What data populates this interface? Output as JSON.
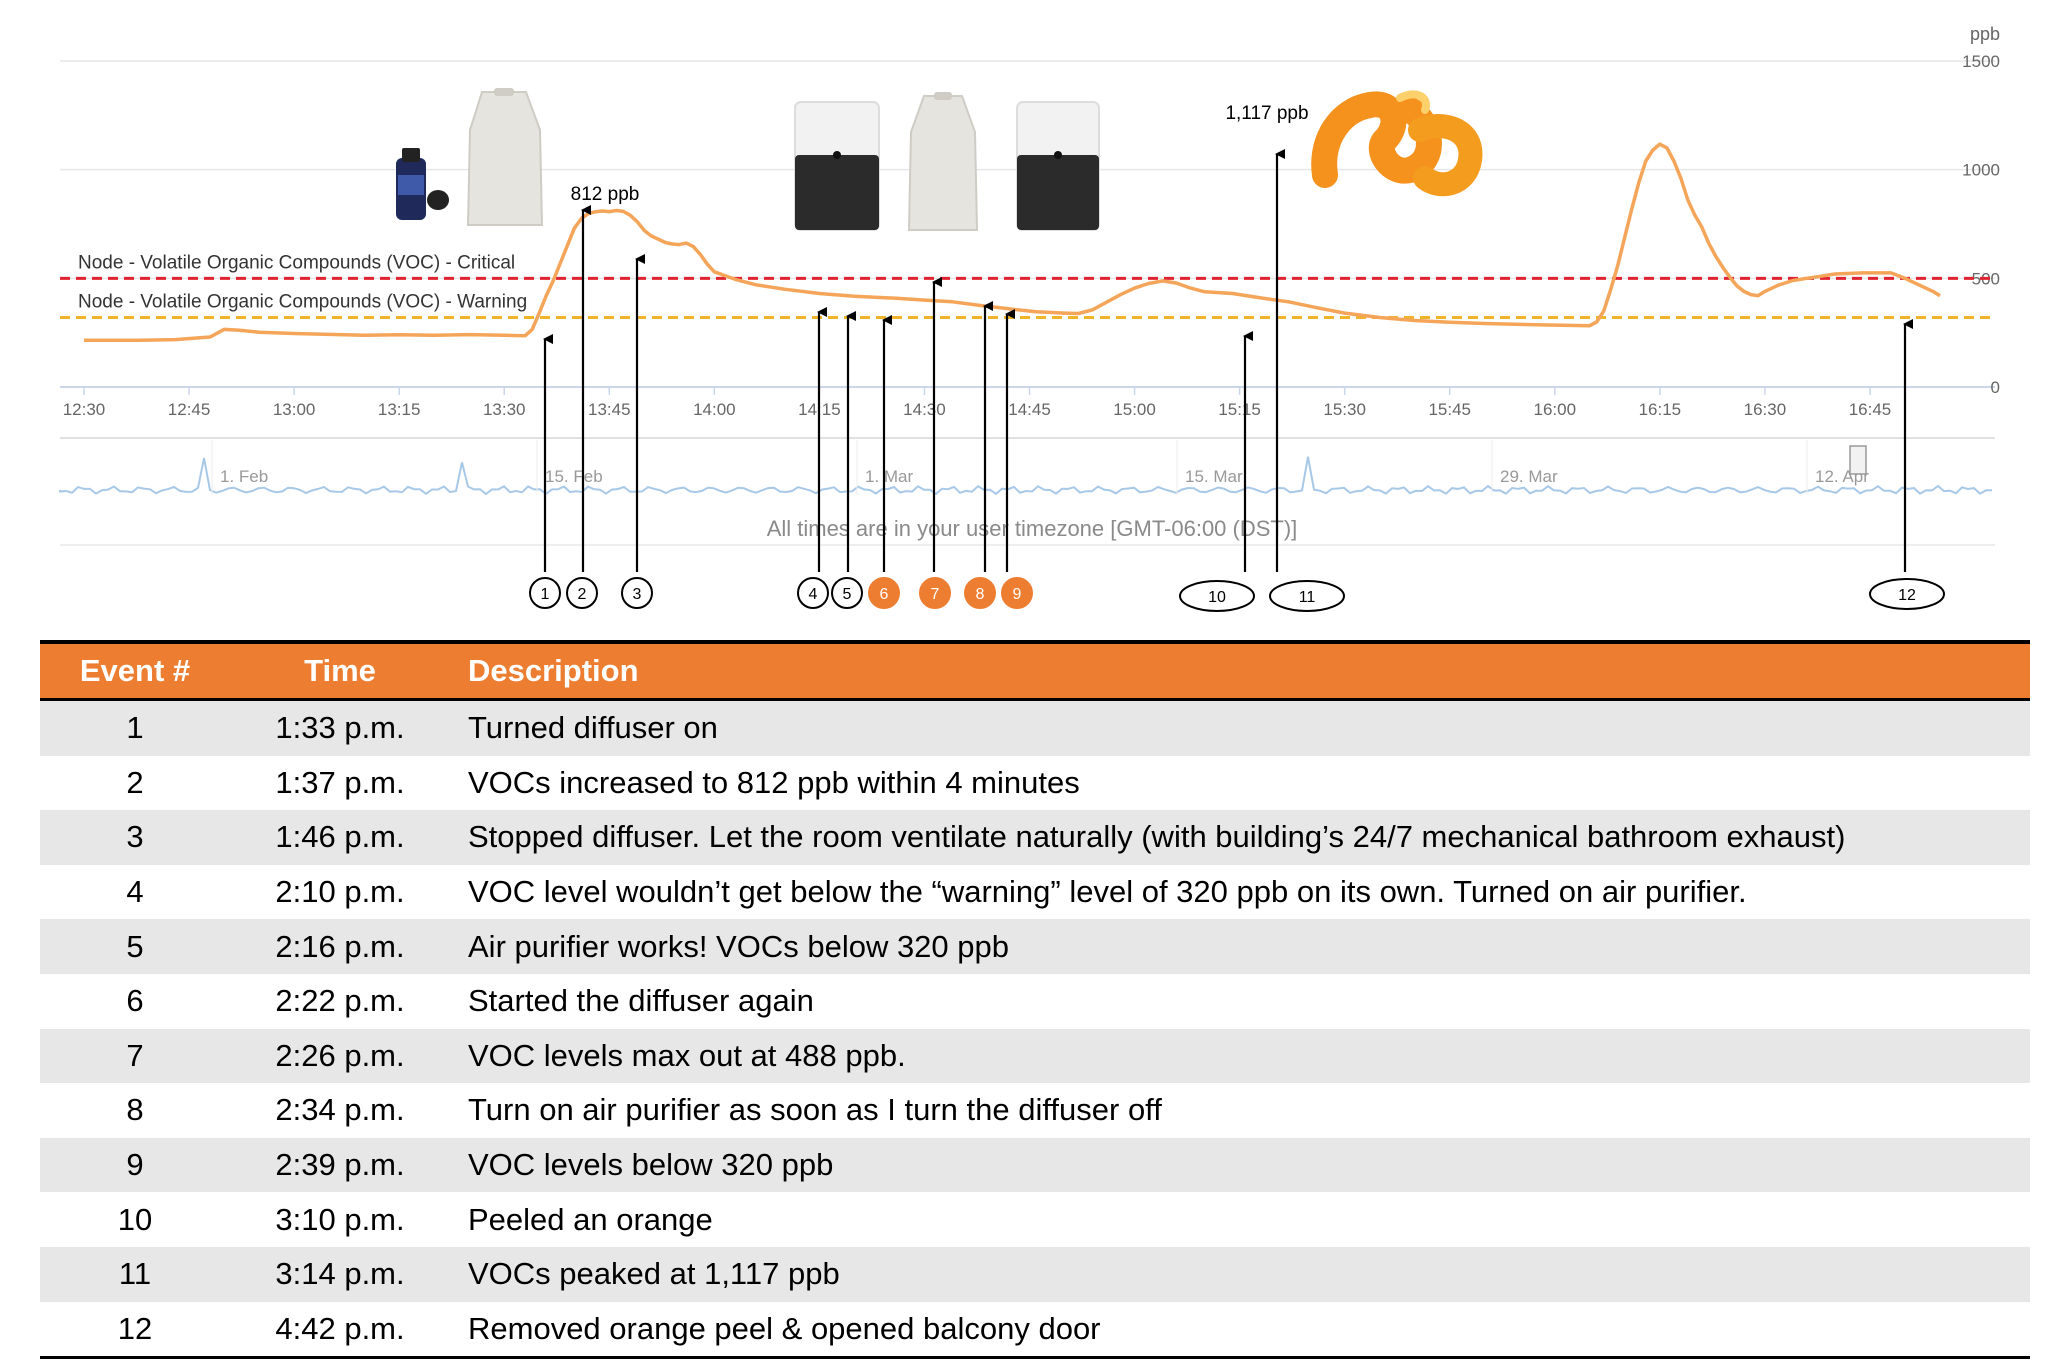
{
  "chart_data": {
    "type": "line",
    "unit_label": "ppb",
    "y_ticks": [
      0,
      500,
      1000,
      1500
    ],
    "ylim": [
      0,
      1500
    ],
    "x_tick_labels": [
      "12:30",
      "12:45",
      "13:00",
      "13:15",
      "13:30",
      "13:45",
      "14:00",
      "14:15",
      "14:30",
      "14:45",
      "15:00",
      "15:15",
      "15:30",
      "15:45",
      "16:00",
      "16:15",
      "16:30",
      "16:45"
    ],
    "xlim_minutes": [
      750,
      1015
    ],
    "series": [
      {
        "color": "#f4a559",
        "points": [
          [
            750,
            215
          ],
          [
            758,
            215
          ],
          [
            763,
            218
          ],
          [
            768,
            230
          ],
          [
            770,
            265
          ],
          [
            772,
            262
          ],
          [
            775,
            252
          ],
          [
            780,
            246
          ],
          [
            785,
            242
          ],
          [
            790,
            238
          ],
          [
            795,
            240
          ],
          [
            800,
            238
          ],
          [
            805,
            241
          ],
          [
            810,
            238
          ],
          [
            813,
            236
          ],
          [
            814,
            265
          ],
          [
            815,
            340
          ],
          [
            816,
            420
          ],
          [
            817,
            490
          ],
          [
            818,
            570
          ],
          [
            819,
            650
          ],
          [
            820,
            730
          ],
          [
            821,
            775
          ],
          [
            822,
            798
          ],
          [
            823,
            806
          ],
          [
            824,
            810
          ],
          [
            825,
            807
          ],
          [
            826,
            812
          ],
          [
            827,
            808
          ],
          [
            828,
            790
          ],
          [
            829,
            760
          ],
          [
            830,
            720
          ],
          [
            831,
            695
          ],
          [
            832,
            680
          ],
          [
            833,
            665
          ],
          [
            834,
            658
          ],
          [
            835,
            655
          ],
          [
            836,
            662
          ],
          [
            837,
            646
          ],
          [
            838,
            610
          ],
          [
            839,
            565
          ],
          [
            840,
            530
          ],
          [
            843,
            495
          ],
          [
            846,
            470
          ],
          [
            850,
            450
          ],
          [
            855,
            430
          ],
          [
            860,
            418
          ],
          [
            866,
            408
          ],
          [
            870,
            400
          ],
          [
            874,
            392
          ],
          [
            878,
            375
          ],
          [
            882,
            360
          ],
          [
            886,
            346
          ],
          [
            890,
            340
          ],
          [
            892,
            338
          ],
          [
            894,
            355
          ],
          [
            896,
            390
          ],
          [
            898,
            425
          ],
          [
            900,
            455
          ],
          [
            902,
            476
          ],
          [
            904,
            488
          ],
          [
            906,
            478
          ],
          [
            908,
            455
          ],
          [
            910,
            438
          ],
          [
            914,
            430
          ],
          [
            918,
            410
          ],
          [
            922,
            392
          ],
          [
            926,
            365
          ],
          [
            930,
            340
          ],
          [
            935,
            320
          ],
          [
            940,
            306
          ],
          [
            945,
            298
          ],
          [
            950,
            292
          ],
          [
            955,
            288
          ],
          [
            960,
            285
          ],
          [
            965,
            282
          ],
          [
            966,
            300
          ],
          [
            967,
            350
          ],
          [
            968,
            450
          ],
          [
            969,
            560
          ],
          [
            970,
            690
          ],
          [
            971,
            820
          ],
          [
            972,
            940
          ],
          [
            973,
            1040
          ],
          [
            974,
            1090
          ],
          [
            975,
            1117
          ],
          [
            976,
            1100
          ],
          [
            977,
            1040
          ],
          [
            978,
            960
          ],
          [
            979,
            860
          ],
          [
            980,
            790
          ],
          [
            981,
            735
          ],
          [
            982,
            660
          ],
          [
            983,
            600
          ],
          [
            984,
            550
          ],
          [
            985,
            505
          ],
          [
            986,
            465
          ],
          [
            987,
            440
          ],
          [
            988,
            425
          ],
          [
            989,
            420
          ],
          [
            990,
            440
          ],
          [
            992,
            470
          ],
          [
            994,
            490
          ],
          [
            996,
            500
          ],
          [
            998,
            510
          ],
          [
            1000,
            520
          ],
          [
            1004,
            525
          ],
          [
            1008,
            525
          ],
          [
            1010,
            500
          ],
          [
            1012,
            470
          ],
          [
            1014,
            440
          ],
          [
            1015,
            420
          ]
        ]
      }
    ],
    "thresholds": [
      {
        "label": "Node - Volatile Organic Compounds (VOC) - Critical",
        "value": 500,
        "color": "#e02330"
      },
      {
        "label": "Node - Volatile Organic Compounds (VOC) - Warning",
        "value": 320,
        "color": "#f0b429"
      }
    ],
    "annotations": [
      {
        "text": "812 ppb"
      },
      {
        "text": "1,117 ppb"
      }
    ],
    "navigator_labels": [
      "1. Feb",
      "15. Feb",
      "1. Mar",
      "15. Mar",
      "29. Mar",
      "12. Apr"
    ],
    "footnote": "All times are in your user timezone [GMT-06:00 (DST)]",
    "event_markers": [
      {
        "label": "1",
        "highlight": false
      },
      {
        "label": "2",
        "highlight": false
      },
      {
        "label": "3",
        "highlight": false
      },
      {
        "label": "4",
        "highlight": false
      },
      {
        "label": "5",
        "highlight": false
      },
      {
        "label": "6",
        "highlight": true
      },
      {
        "label": "7",
        "highlight": true
      },
      {
        "label": "8",
        "highlight": true
      },
      {
        "label": "9",
        "highlight": true
      },
      {
        "label": "10",
        "highlight": false
      },
      {
        "label": "11",
        "highlight": false
      },
      {
        "label": "12",
        "highlight": false
      }
    ],
    "icons": [
      "oil-bottle-icon",
      "diffuser-icon",
      "air-purifier-icon",
      "diffuser-icon",
      "air-purifier-icon",
      "orange-peel-icon"
    ],
    "colors": {
      "highlight": "#ed7d31",
      "navigator": "#a8c8e8"
    }
  },
  "table": {
    "headers": {
      "event": "Event #",
      "time": "Time",
      "description": "Description"
    },
    "rows": [
      {
        "event": "1",
        "time": "1:33 p.m.",
        "description": "Turned diffuser on"
      },
      {
        "event": "2",
        "time": "1:37 p.m.",
        "description": "VOCs increased to 812 ppb within 4 minutes"
      },
      {
        "event": "3",
        "time": "1:46 p.m.",
        "description": "Stopped diffuser. Let the room ventilate naturally (with building’s 24/7 mechanical bathroom exhaust)"
      },
      {
        "event": "4",
        "time": "2:10 p.m.",
        "description": "VOC level wouldn’t get below the “warning” level of 320 ppb on its own. Turned on air purifier."
      },
      {
        "event": "5",
        "time": "2:16 p.m.",
        "description": "Air purifier works! VOCs below 320 ppb"
      },
      {
        "event": "6",
        "time": "2:22 p.m.",
        "description": "Started the diffuser again"
      },
      {
        "event": "7",
        "time": "2:26 p.m.",
        "description": "VOC levels max out at 488 ppb."
      },
      {
        "event": "8",
        "time": "2:34 p.m.",
        "description": "Turn on air purifier as soon as I turn the diffuser off"
      },
      {
        "event": "9",
        "time": "2:39 p.m.",
        "description": "VOC levels below 320 ppb"
      },
      {
        "event": "10",
        "time": "3:10 p.m.",
        "description": "Peeled an orange"
      },
      {
        "event": "11",
        "time": "3:14 p.m.",
        "description": "VOCs peaked at 1,117 ppb"
      },
      {
        "event": "12",
        "time": "4:42 p.m.",
        "description": "Removed orange peel & opened balcony door"
      }
    ]
  }
}
